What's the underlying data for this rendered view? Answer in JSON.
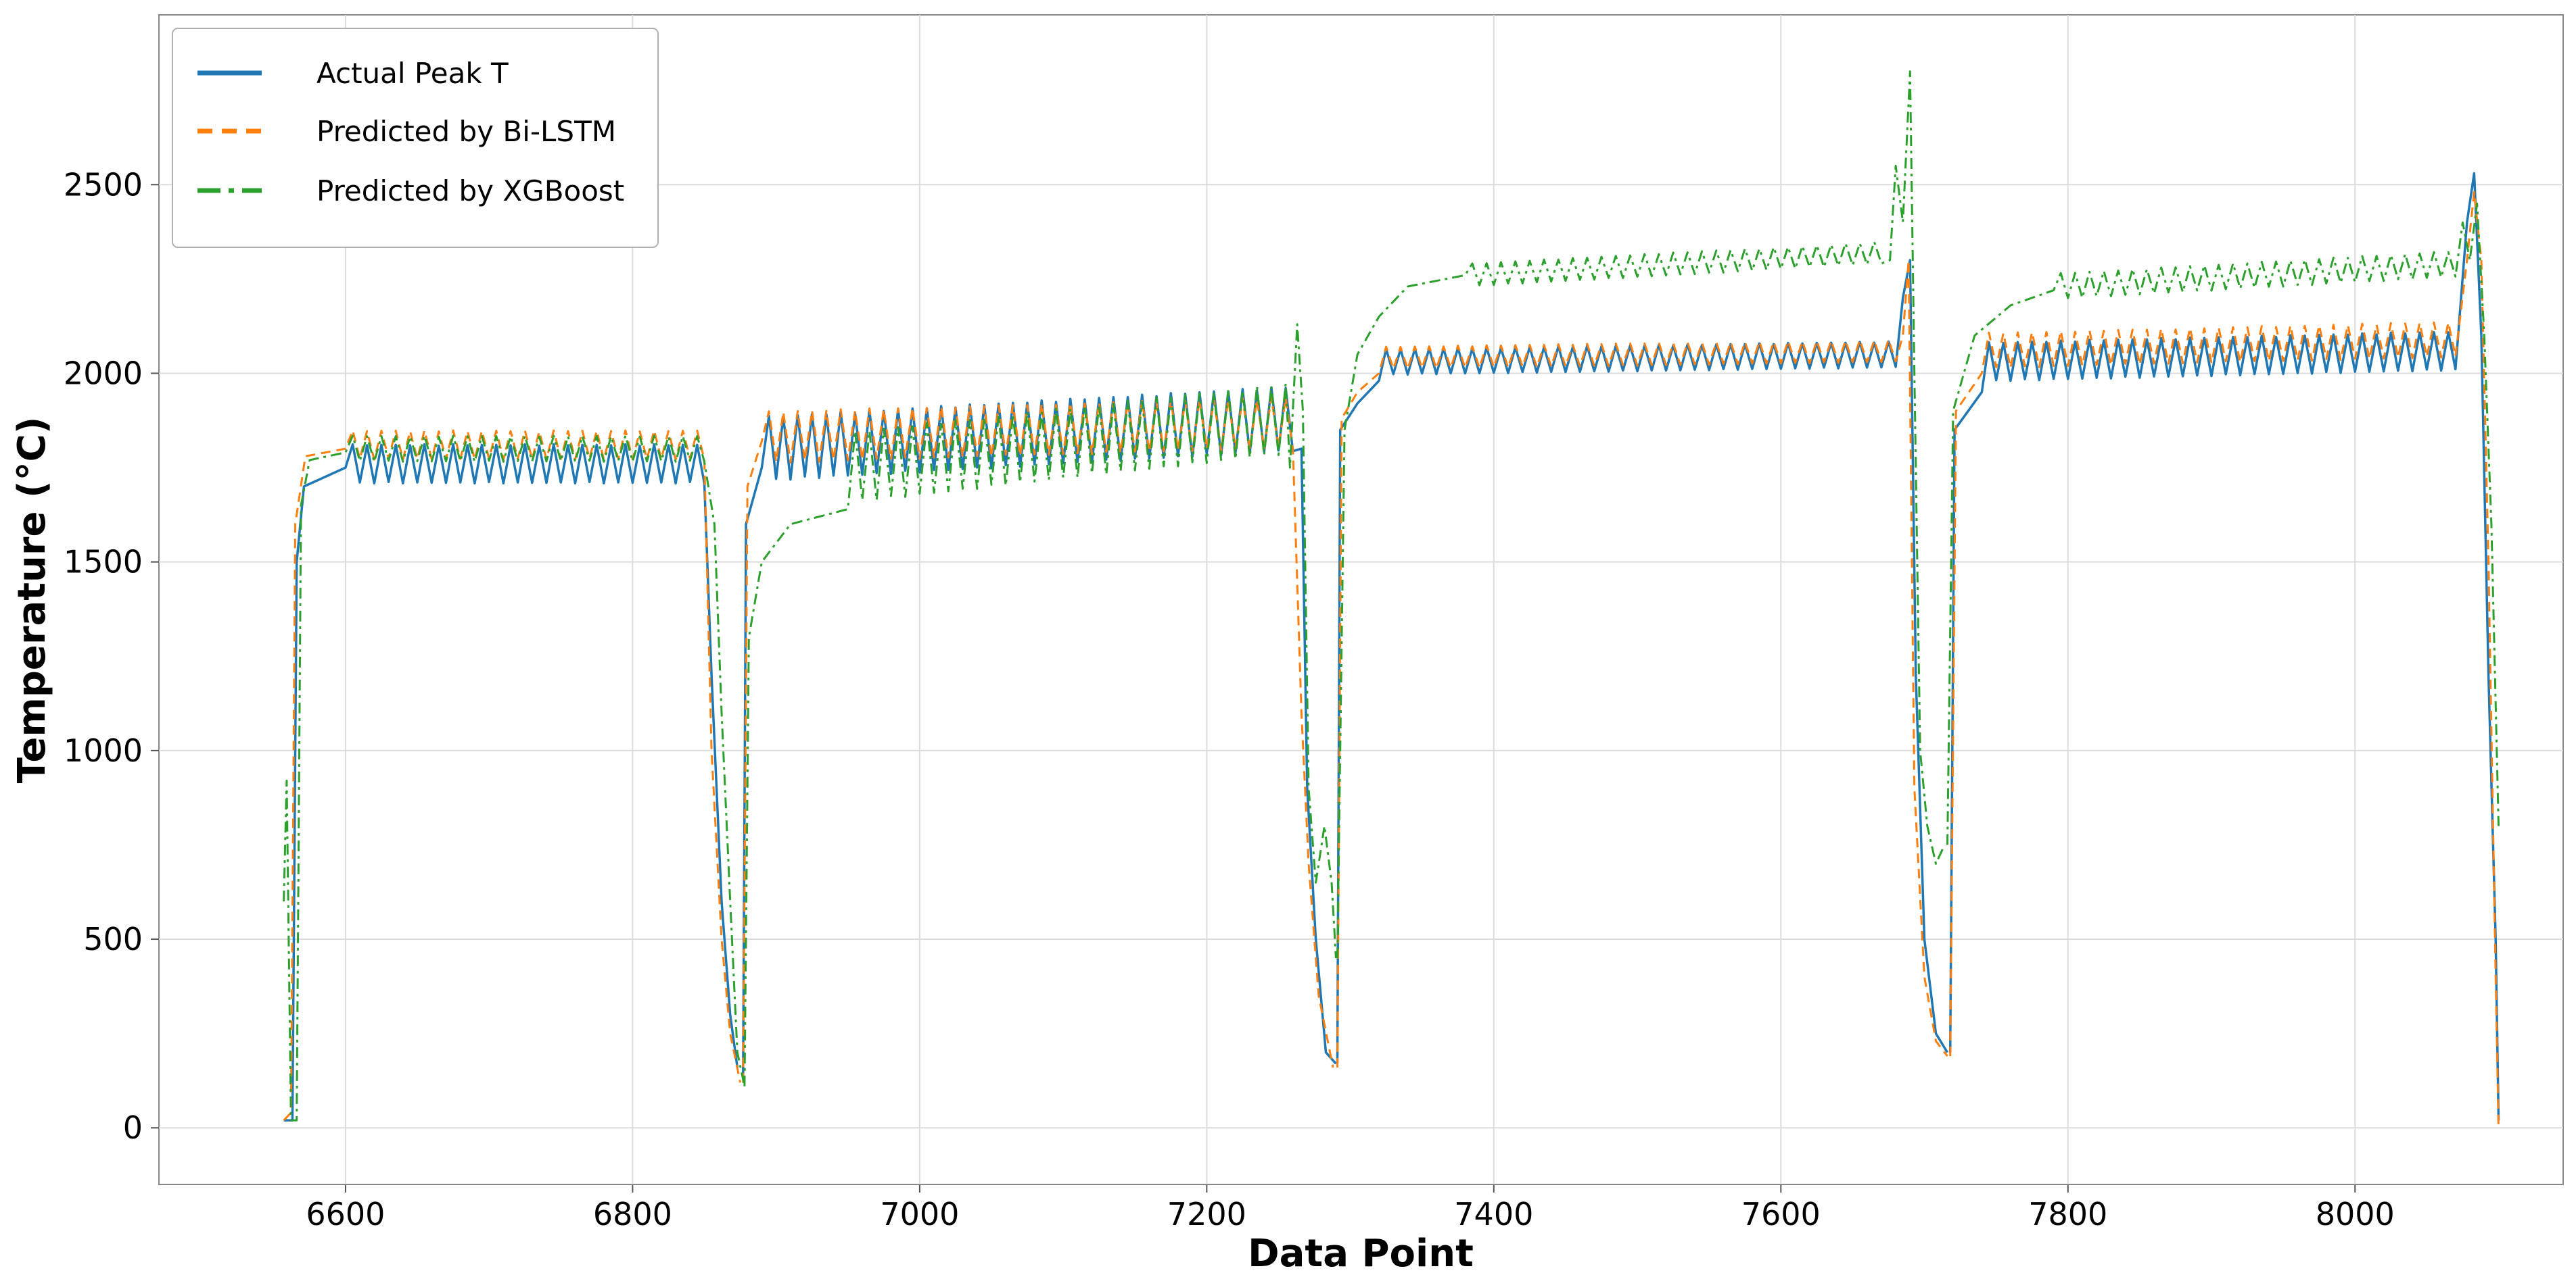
{
  "chart_data": {
    "type": "line",
    "title": "",
    "xlabel": "Data Point",
    "ylabel": "Temperature (°C)",
    "xlim": [
      6470,
      8145
    ],
    "ylim": [
      -150,
      2950
    ],
    "xticks": [
      6600,
      6800,
      7000,
      7200,
      7400,
      7600,
      7800,
      8000
    ],
    "yticks": [
      0,
      500,
      1000,
      1500,
      2000,
      2500
    ],
    "xtick_labels": [
      "6600",
      "6800",
      "7000",
      "7200",
      "7400",
      "7600",
      "7800",
      "8000"
    ],
    "ytick_labels": [
      "0",
      "500",
      "1000",
      "1500",
      "2000",
      "2500"
    ],
    "grid": true,
    "legend_position": "top-left",
    "series": [
      {
        "name": "Actual Peak T",
        "color": "#1f77b4",
        "style": "solid",
        "segments": [
          {
            "x_start": 6557,
            "x_end": 6860,
            "points": [
              [
                6557,
                20
              ],
              [
                6563,
                20
              ],
              [
                6566,
                1500
              ],
              [
                6571,
                1700
              ],
              [
                6600,
                1750
              ]
            ],
            "plateau": {
              "base": 1760,
              "amp": 60,
              "period": 10,
              "rise": 0,
              "x_end": 6853
            },
            "drop": [
              [
                6855,
                1200
              ],
              [
                6862,
                600
              ],
              [
                6868,
                300
              ],
              [
                6873,
                160
              ]
            ]
          },
          {
            "x_start": 6877,
            "x_end": 7290,
            "points": [
              [
                6877,
                140
              ],
              [
                6879,
                1600
              ],
              [
                6890,
                1750
              ]
            ],
            "plateau": {
              "base": 1800,
              "amp": 100,
              "period": 10,
              "rise": 80,
              "x_end": 7262
            },
            "drop": [
              [
                7266,
                1800
              ],
              [
                7270,
                900
              ],
              [
                7276,
                500
              ],
              [
                7283,
                200
              ],
              [
                7290,
                170
              ]
            ]
          },
          {
            "x_start": 7291,
            "x_end": 7720,
            "points": [
              [
                7291,
                170
              ],
              [
                7293,
                1850
              ],
              [
                7305,
                1920
              ],
              [
                7320,
                1980
              ]
            ],
            "plateau": {
              "base": 2030,
              "amp": 40,
              "period": 10,
              "rise": 20,
              "x_end": 7682
            },
            "drop": [
              [
                7685,
                2200
              ],
              [
                7690,
                2300
              ],
              [
                7694,
                1200
              ],
              [
                7700,
                500
              ],
              [
                7708,
                250
              ],
              [
                7716,
                200
              ]
            ]
          },
          {
            "x_start": 7718,
            "x_end": 8100,
            "points": [
              [
                7718,
                200
              ],
              [
                7721,
                1850
              ],
              [
                7740,
                1950
              ]
            ],
            "plateau": {
              "base": 2030,
              "amp": 60,
              "period": 10,
              "rise": 30,
              "x_end": 8072
            },
            "drop": [
              [
                8078,
                2400
              ],
              [
                8083,
                2530
              ],
              [
                8088,
                2100
              ],
              [
                8093,
                1200
              ],
              [
                8098,
                500
              ],
              [
                8100,
                20
              ]
            ]
          }
        ]
      },
      {
        "name": "Predicted by Bi-LSTM",
        "color": "#ff7f0e",
        "style": "dashed",
        "segments": [
          {
            "x_start": 6557,
            "x_end": 6860,
            "points": [
              [
                6557,
                20
              ],
              [
                6562,
                40
              ],
              [
                6565,
                1600
              ],
              [
                6572,
                1780
              ],
              [
                6600,
                1800
              ]
            ],
            "plateau": {
              "base": 1810,
              "amp": 45,
              "period": 10,
              "rise": 0,
              "x_end": 6853
            },
            "drop": [
              [
                6855,
                1000
              ],
              [
                6862,
                500
              ],
              [
                6868,
                250
              ],
              [
                6875,
                120
              ]
            ]
          },
          {
            "x_start": 6877,
            "x_end": 7290,
            "points": [
              [
                6877,
                120
              ],
              [
                6880,
                1700
              ],
              [
                6890,
                1820
              ]
            ],
            "plateau": {
              "base": 1830,
              "amp": 80,
              "period": 10,
              "rise": 40,
              "x_end": 7262
            },
            "drop": [
              [
                7266,
                1100
              ],
              [
                7271,
                700
              ],
              [
                7278,
                350
              ],
              [
                7288,
                160
              ]
            ]
          },
          {
            "x_start": 7291,
            "x_end": 7720,
            "points": [
              [
                7291,
                160
              ],
              [
                7294,
                1880
              ],
              [
                7305,
                1950
              ],
              [
                7320,
                2000
              ]
            ],
            "plateau": {
              "base": 2040,
              "amp": 35,
              "period": 10,
              "rise": 20,
              "x_end": 7682
            },
            "drop": [
              [
                7685,
                2100
              ],
              [
                7689,
                2300
              ],
              [
                7693,
                900
              ],
              [
                7700,
                400
              ],
              [
                7708,
                230
              ],
              [
                7716,
                190
              ]
            ]
          },
          {
            "x_start": 7718,
            "x_end": 8100,
            "points": [
              [
                7718,
                190
              ],
              [
                7722,
                1900
              ],
              [
                7740,
                2000
              ]
            ],
            "plateau": {
              "base": 2060,
              "amp": 55,
              "period": 10,
              "rise": 30,
              "x_end": 8072
            },
            "drop": [
              [
                8078,
                2300
              ],
              [
                8083,
                2480
              ],
              [
                8088,
                2300
              ],
              [
                8093,
                1500
              ],
              [
                8098,
                400
              ],
              [
                8100,
                0
              ]
            ]
          }
        ]
      },
      {
        "name": "Predicted by XGBoost",
        "color": "#2ca02c",
        "style": "dashdot",
        "segments": [
          {
            "x_start": 6557,
            "x_end": 6860,
            "points": [
              [
                6557,
                600
              ],
              [
                6559,
                920
              ],
              [
                6562,
                20
              ],
              [
                6566,
                20
              ],
              [
                6569,
                1650
              ],
              [
                6575,
                1770
              ],
              [
                6600,
                1790
              ]
            ],
            "plateau": {
              "base": 1800,
              "amp": 40,
              "period": 10,
              "rise": 0,
              "x_end": 6853
            },
            "drop": [
              [
                6857,
                1600
              ],
              [
                6862,
                1100
              ],
              [
                6868,
                600
              ],
              [
                6873,
                200
              ],
              [
                6878,
                110
              ]
            ]
          },
          {
            "x_start": 6878,
            "x_end": 7290,
            "points": [
              [
                6878,
                110
              ],
              [
                6881,
                1300
              ],
              [
                6890,
                1500
              ],
              [
                6910,
                1600
              ],
              [
                6950,
                1640
              ]
            ],
            "plateau": {
              "base": 1750,
              "amp": 110,
              "period": 10,
              "rise": 130,
              "x_end": 7255
            },
            "drop": [
              [
                7258,
                1750
              ],
              [
                7263,
                2130
              ],
              [
                7267,
                1900
              ],
              [
                7271,
                900
              ],
              [
                7276,
                650
              ],
              [
                7282,
                800
              ],
              [
                7287,
                650
              ],
              [
                7290,
                450
              ]
            ]
          },
          {
            "x_start": 7291,
            "x_end": 7720,
            "points": [
              [
                7291,
                450
              ],
              [
                7296,
                1850
              ],
              [
                7305,
                2050
              ],
              [
                7320,
                2150
              ],
              [
                7340,
                2230
              ],
              [
                7380,
                2260
              ]
            ],
            "plateau": {
              "base": 2260,
              "amp": 35,
              "period": 10,
              "rise": 60,
              "x_end": 7672
            },
            "drop": [
              [
                7676,
                2300
              ],
              [
                7680,
                2550
              ],
              [
                7685,
                2400
              ],
              [
                7690,
                2800
              ],
              [
                7693,
                2000
              ],
              [
                7697,
                1000
              ],
              [
                7702,
                800
              ],
              [
                7708,
                700
              ],
              [
                7714,
                750
              ]
            ]
          },
          {
            "x_start": 7716,
            "x_end": 8100,
            "points": [
              [
                7716,
                750
              ],
              [
                7720,
                1900
              ],
              [
                7735,
                2100
              ],
              [
                7760,
                2180
              ],
              [
                7790,
                2220
              ]
            ],
            "plateau": {
              "base": 2230,
              "amp": 40,
              "period": 10,
              "rise": 60,
              "x_end": 8070
            },
            "drop": [
              [
                8075,
                2400
              ],
              [
                8080,
                2300
              ],
              [
                8085,
                2450
              ],
              [
                8090,
                2100
              ],
              [
                8095,
                1600
              ],
              [
                8100,
                800
              ]
            ]
          }
        ]
      }
    ]
  }
}
